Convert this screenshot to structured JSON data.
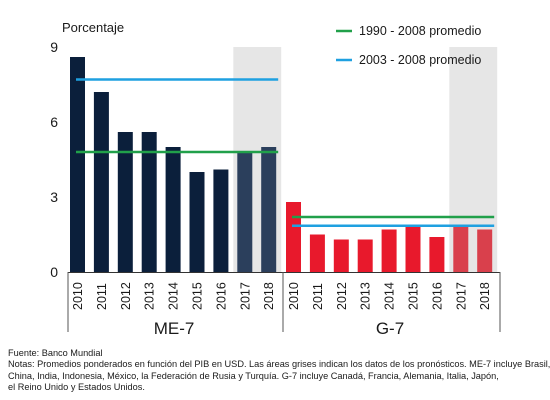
{
  "chart_data": {
    "type": "bar",
    "ylabel": "Porcentaje",
    "ylim": [
      0,
      9
    ],
    "yticks": [
      0,
      3,
      6,
      9
    ],
    "categories": [
      "2010",
      "2011",
      "2012",
      "2013",
      "2014",
      "2015",
      "2016",
      "2017",
      "2018"
    ],
    "forecast_categories": [
      "2017",
      "2018"
    ],
    "groups": [
      {
        "name": "ME-7",
        "color": "#0b1f3b",
        "forecast_color": "#2b3f5c",
        "values": [
          8.6,
          7.2,
          5.6,
          5.6,
          5.0,
          4.0,
          4.1,
          4.8,
          5.0
        ],
        "avg_1990_2008": 4.8,
        "avg_2003_2008": 7.7
      },
      {
        "name": "G-7",
        "color": "#e8192c",
        "forecast_color": "#d9404c",
        "values": [
          2.8,
          1.5,
          1.3,
          1.3,
          1.7,
          1.8,
          1.4,
          1.8,
          1.7
        ],
        "avg_1990_2008": 2.2,
        "avg_2003_2008": 1.85
      }
    ],
    "reference_lines": [
      {
        "name": "1990 - 2008 promedio",
        "color": "#21a04a"
      },
      {
        "name": "2003 - 2008 promedio",
        "color": "#1fa0e0"
      }
    ],
    "forecast_shade_color": "#e6e6e6",
    "legend_position": "top-right"
  },
  "footer": {
    "source": "Fuente: Banco Mundial",
    "notes_lines": [
      "Notas: Promedios ponderados en función del PIB en USD. Las áreas grises indican los datos de los pronósticos. ME-7 incluye Brasil,",
      "China, India, Indonesia, México, la Federación de Rusia y Turquía. G-7 incluye Canadá, Francia, Alemania, Italia, Japón,",
      "el Reino Unido y Estados Unidos."
    ]
  }
}
